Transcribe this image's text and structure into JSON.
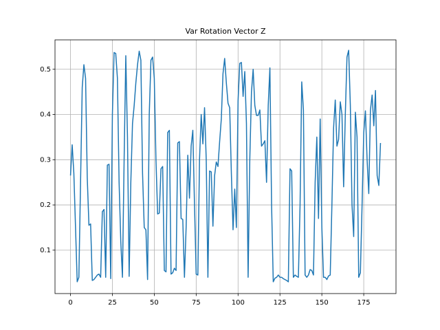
{
  "chart_data": {
    "type": "line",
    "title": "Var Rotation Vector Z",
    "color": "#1f77b4",
    "grid": true,
    "xlim": [
      -9.25,
      194.25
    ],
    "xticks": [
      0,
      25,
      50,
      75,
      100,
      125,
      150,
      175
    ],
    "ylim": [
      0.004,
      0.565
    ],
    "yticks": [
      0.1,
      0.2,
      0.3,
      0.4,
      0.5
    ],
    "x": [
      0,
      1,
      2,
      3,
      4,
      5,
      6,
      7,
      8,
      9,
      10,
      11,
      12,
      13,
      14,
      15,
      16,
      17,
      18,
      19,
      20,
      21,
      22,
      23,
      24,
      25,
      26,
      27,
      28,
      29,
      30,
      31,
      32,
      33,
      34,
      35,
      36,
      37,
      38,
      39,
      40,
      41,
      42,
      43,
      44,
      45,
      46,
      47,
      48,
      49,
      50,
      51,
      52,
      53,
      54,
      55,
      56,
      57,
      58,
      59,
      60,
      61,
      62,
      63,
      64,
      65,
      66,
      67,
      68,
      69,
      70,
      71,
      72,
      73,
      74,
      75,
      76,
      77,
      78,
      79,
      80,
      81,
      82,
      83,
      84,
      85,
      86,
      87,
      88,
      89,
      90,
      91,
      92,
      93,
      94,
      95,
      96,
      97,
      98,
      99,
      100,
      101,
      102,
      103,
      104,
      105,
      106,
      107,
      108,
      109,
      110,
      111,
      112,
      113,
      114,
      115,
      116,
      117,
      118,
      119,
      120,
      121,
      122,
      123,
      124,
      125,
      126,
      127,
      128,
      129,
      130,
      131,
      132,
      133,
      134,
      135,
      136,
      137,
      138,
      139,
      140,
      141,
      142,
      143,
      144,
      145,
      146,
      147,
      148,
      149,
      150,
      151,
      152,
      153,
      154,
      155,
      156,
      157,
      158,
      159,
      160,
      161,
      162,
      163,
      164,
      165,
      166,
      167,
      168,
      169,
      170,
      171,
      172,
      173,
      174,
      175,
      176,
      177,
      178,
      179,
      180,
      181,
      182,
      183,
      184,
      185
    ],
    "values": [
      0.265,
      0.333,
      0.27,
      0.15,
      0.03,
      0.04,
      0.25,
      0.46,
      0.51,
      0.48,
      0.26,
      0.155,
      0.158,
      0.033,
      0.035,
      0.04,
      0.045,
      0.047,
      0.04,
      0.185,
      0.19,
      0.04,
      0.288,
      0.29,
      0.037,
      0.4,
      0.537,
      0.535,
      0.48,
      0.25,
      0.12,
      0.04,
      0.3,
      0.53,
      0.35,
      0.042,
      0.25,
      0.38,
      0.42,
      0.47,
      0.51,
      0.54,
      0.52,
      0.27,
      0.15,
      0.145,
      0.035,
      0.4,
      0.52,
      0.527,
      0.48,
      0.3,
      0.18,
      0.182,
      0.28,
      0.285,
      0.055,
      0.052,
      0.36,
      0.365,
      0.047,
      0.05,
      0.06,
      0.055,
      0.337,
      0.34,
      0.17,
      0.168,
      0.04,
      0.15,
      0.31,
      0.215,
      0.33,
      0.365,
      0.2,
      0.047,
      0.045,
      0.3,
      0.4,
      0.335,
      0.415,
      0.3,
      0.04,
      0.275,
      0.273,
      0.153,
      0.265,
      0.295,
      0.285,
      0.34,
      0.39,
      0.49,
      0.524,
      0.47,
      0.425,
      0.415,
      0.27,
      0.145,
      0.235,
      0.15,
      0.43,
      0.513,
      0.515,
      0.44,
      0.495,
      0.38,
      0.04,
      0.3,
      0.45,
      0.5,
      0.42,
      0.398,
      0.398,
      0.41,
      0.33,
      0.335,
      0.342,
      0.25,
      0.42,
      0.503,
      0.2,
      0.03,
      0.038,
      0.04,
      0.045,
      0.04,
      0.04,
      0.037,
      0.035,
      0.033,
      0.03,
      0.28,
      0.275,
      0.04,
      0.045,
      0.042,
      0.04,
      0.2,
      0.472,
      0.41,
      0.045,
      0.04,
      0.045,
      0.057,
      0.055,
      0.045,
      0.25,
      0.35,
      0.17,
      0.39,
      0.15,
      0.04,
      0.04,
      0.035,
      0.043,
      0.045,
      0.2,
      0.37,
      0.432,
      0.33,
      0.345,
      0.428,
      0.4,
      0.24,
      0.4,
      0.527,
      0.542,
      0.42,
      0.2,
      0.13,
      0.405,
      0.35,
      0.04,
      0.05,
      0.2,
      0.36,
      0.408,
      0.3,
      0.225,
      0.41,
      0.443,
      0.375,
      0.453,
      0.265,
      0.243,
      0.337
    ]
  }
}
